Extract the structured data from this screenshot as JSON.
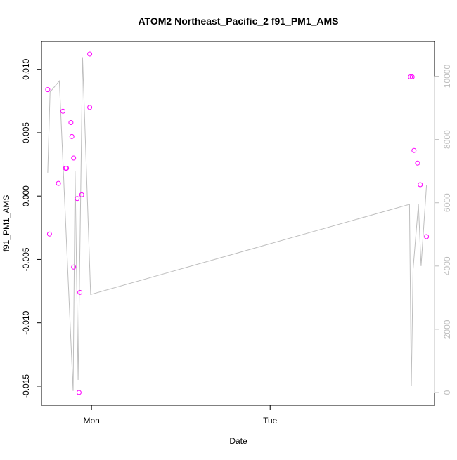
{
  "chart_data": {
    "type": "scatter",
    "title": "ATOM2 Northeast_Pacific_2 f91_PM1_AMS",
    "xlabel": "Date",
    "ylabel": "f91_PM1_AMS",
    "x_axis": {
      "type": "time",
      "ticks": [
        {
          "label": "Mon",
          "value": 1.0
        },
        {
          "label": "Tue",
          "value": 2.0
        }
      ],
      "range": [
        0.72,
        2.92
      ]
    },
    "y_left": {
      "range": [
        -0.0165,
        0.0122
      ],
      "ticks": [
        "-0.015",
        "-0.010",
        "-0.005",
        "0.000",
        "0.005",
        "0.010"
      ],
      "tick_values": [
        -0.015,
        -0.01,
        -0.005,
        0.0,
        0.005,
        0.01
      ]
    },
    "y_right": {
      "range": [
        -400,
        11100
      ],
      "ticks": [
        "0",
        "2000",
        "4000",
        "6000",
        "8000",
        "10000"
      ],
      "tick_values": [
        0,
        2000,
        4000,
        6000,
        8000,
        10000
      ],
      "color": "#bebebe"
    },
    "series": [
      {
        "type": "scatter",
        "axis": "left",
        "marker": "open-circle",
        "color": "#ff00ff",
        "points": [
          {
            "x": 0.755,
            "y": 0.0084
          },
          {
            "x": 0.765,
            "y": -0.003
          },
          {
            "x": 0.815,
            "y": 0.001
          },
          {
            "x": 0.84,
            "y": 0.0067
          },
          {
            "x": 0.855,
            "y": 0.0022
          },
          {
            "x": 0.86,
            "y": 0.0022
          },
          {
            "x": 0.885,
            "y": 0.0058
          },
          {
            "x": 0.89,
            "y": 0.0047
          },
          {
            "x": 0.9,
            "y": 0.003
          },
          {
            "x": 0.9,
            "y": -0.0056
          },
          {
            "x": 0.92,
            "y": -0.0002
          },
          {
            "x": 0.93,
            "y": -0.0155
          },
          {
            "x": 0.935,
            "y": -0.0076
          },
          {
            "x": 0.945,
            "y": 0.0001
          },
          {
            "x": 0.99,
            "y": 0.0112
          },
          {
            "x": 0.99,
            "y": 0.007
          },
          {
            "x": 2.785,
            "y": 0.0094
          },
          {
            "x": 2.795,
            "y": 0.0094
          },
          {
            "x": 2.805,
            "y": 0.0036
          },
          {
            "x": 2.825,
            "y": 0.0026
          },
          {
            "x": 2.84,
            "y": 0.0009
          },
          {
            "x": 2.875,
            "y": -0.0032
          }
        ]
      },
      {
        "type": "line",
        "axis": "right",
        "color": "#bebebe",
        "points": [
          {
            "x": 0.755,
            "y": 6950
          },
          {
            "x": 0.768,
            "y": 9500
          },
          {
            "x": 0.82,
            "y": 9850
          },
          {
            "x": 0.897,
            "y": 50
          },
          {
            "x": 0.908,
            "y": 7000
          },
          {
            "x": 0.925,
            "y": 400
          },
          {
            "x": 0.95,
            "y": 10600
          },
          {
            "x": 0.995,
            "y": 3100
          },
          {
            "x": 2.78,
            "y": 5950
          },
          {
            "x": 2.79,
            "y": 200
          },
          {
            "x": 2.8,
            "y": 3900
          },
          {
            "x": 2.83,
            "y": 5950
          },
          {
            "x": 2.845,
            "y": 4000
          },
          {
            "x": 2.875,
            "y": 6550
          }
        ]
      }
    ]
  }
}
